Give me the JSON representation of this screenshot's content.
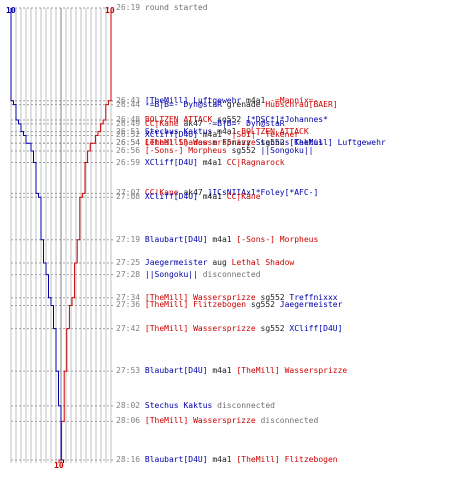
{
  "colors": {
    "blue": "#0000aa",
    "red": "#cc0000",
    "grid": "#c0c0c0",
    "dash": "#a0a0a0",
    "time": "#808080",
    "gray": "#707070",
    "black": "#202020",
    "center": "#808080"
  },
  "score_labels": {
    "blue_top": "10",
    "red_top": "10",
    "bottom": "10"
  },
  "events": [
    {
      "time": "26:19",
      "parts": [
        {
          "c": "gray",
          "t": "round started"
        }
      ]
    },
    {
      "time": "26:43",
      "parts": [
        {
          "c": "blue",
          "t": "[TheMill] Luftgewehr"
        },
        {
          "c": "black",
          "t": " m4a1 "
        },
        {
          "c": "red",
          "t": "-=Mannix=-"
        }
      ]
    },
    {
      "time": "26:44",
      "parts": [
        {
          "c": "blue",
          "t": "-=B|B=- Dyn@staR"
        },
        {
          "c": "black",
          "t": " grenade "
        },
        {
          "c": "red",
          "t": "Hubschrau[BAER]"
        }
      ]
    },
    {
      "time": "26:48",
      "parts": [
        {
          "c": "red",
          "t": "BOLTZEN ATTACK"
        },
        {
          "c": "black",
          "t": " sg552 "
        },
        {
          "c": "blue",
          "t": "[*DSC*]*Johannes*"
        }
      ]
    },
    {
      "time": "26:49",
      "parts": [
        {
          "c": "red",
          "t": "CC|Kane"
        },
        {
          "c": "black",
          "t": " ak47 "
        },
        {
          "c": "blue",
          "t": "-=B|B=- Dyn@staR"
        }
      ]
    },
    {
      "time": "26:51",
      "parts": [
        {
          "c": "blue",
          "t": "Stechus Kaktus"
        },
        {
          "c": "black",
          "t": " m4a1 "
        },
        {
          "c": "red",
          "t": "BOLTZEN ATTACK"
        }
      ]
    },
    {
      "time": "26:52",
      "parts": [
        {
          "c": "blue",
          "t": "XCliff[D4U]"
        },
        {
          "c": "black",
          "t": " m4a1 "
        },
        {
          "c": "red",
          "t": "-|SoI|- Tekener"
        }
      ]
    },
    {
      "time": "26:54",
      "parts": [
        {
          "c": "red",
          "t": "Lethal Shadow"
        },
        {
          "c": "black",
          "t": " m F5navy "
        },
        {
          "c": "blue",
          "t": "Stechus Kaktus"
        }
      ]
    },
    {
      "time": "26:54",
      "parts": [
        {
          "c": "red",
          "t": "[TheMill] Wassersprizze"
        },
        {
          "c": "black",
          "t": " sg552 "
        },
        {
          "c": "blue",
          "t": "[TheMill] Luftgewehr"
        }
      ]
    },
    {
      "time": "26:56",
      "parts": [
        {
          "c": "red",
          "t": "[-Sons-] Morpheus"
        },
        {
          "c": "black",
          "t": " sg552 "
        },
        {
          "c": "blue",
          "t": "||Songoku||"
        }
      ]
    },
    {
      "time": "26:59",
      "parts": [
        {
          "c": "blue",
          "t": "XCliff[D4U]"
        },
        {
          "c": "black",
          "t": " m4a1 "
        },
        {
          "c": "red",
          "t": "CC|Ragnarock"
        }
      ]
    },
    {
      "time": "27:07",
      "parts": [
        {
          "c": "red",
          "t": "CC|Kane"
        },
        {
          "c": "black",
          "t": " ak47 "
        },
        {
          "c": "blue",
          "t": "]ICsNIIAx1*Foley[*AFC-]"
        }
      ]
    },
    {
      "time": "27:08",
      "parts": [
        {
          "c": "blue",
          "t": "XCliff[D4U]"
        },
        {
          "c": "black",
          "t": " m4a1 "
        },
        {
          "c": "red",
          "t": "CC|Kane"
        }
      ]
    },
    {
      "time": "27:19",
      "parts": [
        {
          "c": "blue",
          "t": "Blaubart[D4U]"
        },
        {
          "c": "black",
          "t": " m4a1 "
        },
        {
          "c": "red",
          "t": "[-Sons-] Morpheus"
        }
      ]
    },
    {
      "time": "27:25",
      "parts": [
        {
          "c": "blue",
          "t": "Jaegermeister"
        },
        {
          "c": "black",
          "t": " aug "
        },
        {
          "c": "red",
          "t": "Lethal Shadow"
        }
      ]
    },
    {
      "time": "27:28",
      "parts": [
        {
          "c": "blue",
          "t": "||Songoku||"
        },
        {
          "c": "gray",
          "t": " disconnected"
        }
      ]
    },
    {
      "time": "27:34",
      "parts": [
        {
          "c": "red",
          "t": "[TheMill] Wassersprizze"
        },
        {
          "c": "black",
          "t": " sg552 "
        },
        {
          "c": "blue",
          "t": "Treffnixxx"
        }
      ]
    },
    {
      "time": "27:36",
      "parts": [
        {
          "c": "red",
          "t": "[TheMill] Flitzebogen"
        },
        {
          "c": "black",
          "t": " sg552 "
        },
        {
          "c": "blue",
          "t": "Jaegermeister"
        }
      ]
    },
    {
      "time": "27:42",
      "parts": [
        {
          "c": "red",
          "t": "[TheMill] Wassersprizze"
        },
        {
          "c": "black",
          "t": " sg552 "
        },
        {
          "c": "blue",
          "t": "XCliff[D4U]"
        }
      ]
    },
    {
      "time": "27:53",
      "parts": [
        {
          "c": "blue",
          "t": "Blaubart[D4U]"
        },
        {
          "c": "black",
          "t": " m4a1 "
        },
        {
          "c": "red",
          "t": "[TheMill] Wassersprizze"
        }
      ]
    },
    {
      "time": "28:02",
      "parts": [
        {
          "c": "blue",
          "t": "Stechus Kaktus"
        },
        {
          "c": "gray",
          "t": " disconnected"
        }
      ]
    },
    {
      "time": "28:06",
      "parts": [
        {
          "c": "red",
          "t": "[TheMill] Wassersprizze"
        },
        {
          "c": "gray",
          "t": " disconnected"
        }
      ]
    },
    {
      "time": "28:16",
      "parts": [
        {
          "c": "blue",
          "t": "Blaubart[D4U]"
        },
        {
          "c": "black",
          "t": " m4a1 "
        },
        {
          "c": "red",
          "t": "[TheMill] Flitzebogen"
        }
      ]
    }
  ]
}
